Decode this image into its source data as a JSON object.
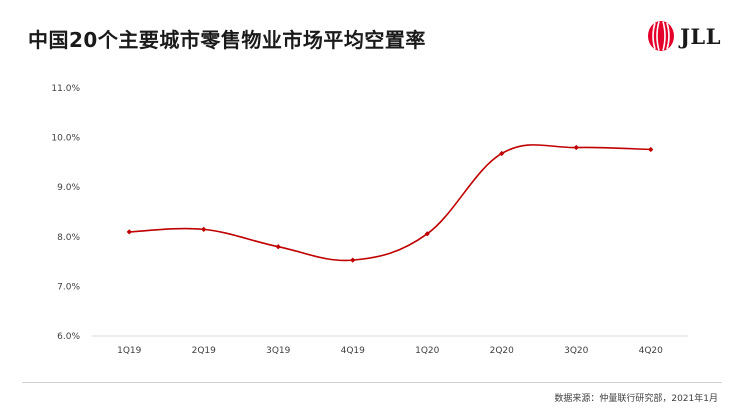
{
  "header": {
    "title": "中国20个主要城市零售物业市场平均空置率",
    "logo_text": "JLL"
  },
  "footer": {
    "source": "数据来源：仲量联行研究部，2021年1月"
  },
  "colors": {
    "line": "#c00000",
    "grid": "#d9d9d9",
    "logo_red": "#e4002b"
  },
  "chart_data": {
    "type": "line",
    "title": "中国20个主要城市零售物业市场平均空置率",
    "xlabel": "",
    "ylabel": "",
    "categories": [
      "1Q19",
      "2Q19",
      "3Q19",
      "4Q19",
      "1Q20",
      "2Q20",
      "3Q20",
      "4Q20"
    ],
    "series": [
      {
        "values": [
          8.1,
          8.15,
          7.8,
          7.53,
          8.06,
          9.68,
          9.8,
          9.76
        ]
      }
    ],
    "ylim": [
      6.0,
      11.0
    ],
    "yticks": [
      6.0,
      7.0,
      8.0,
      9.0,
      10.0,
      11.0
    ],
    "ytick_labels": [
      "6.0%",
      "7.0%",
      "8.0%",
      "9.0%",
      "10.0%",
      "11.0%"
    ],
    "grid": false,
    "legend": "none"
  }
}
